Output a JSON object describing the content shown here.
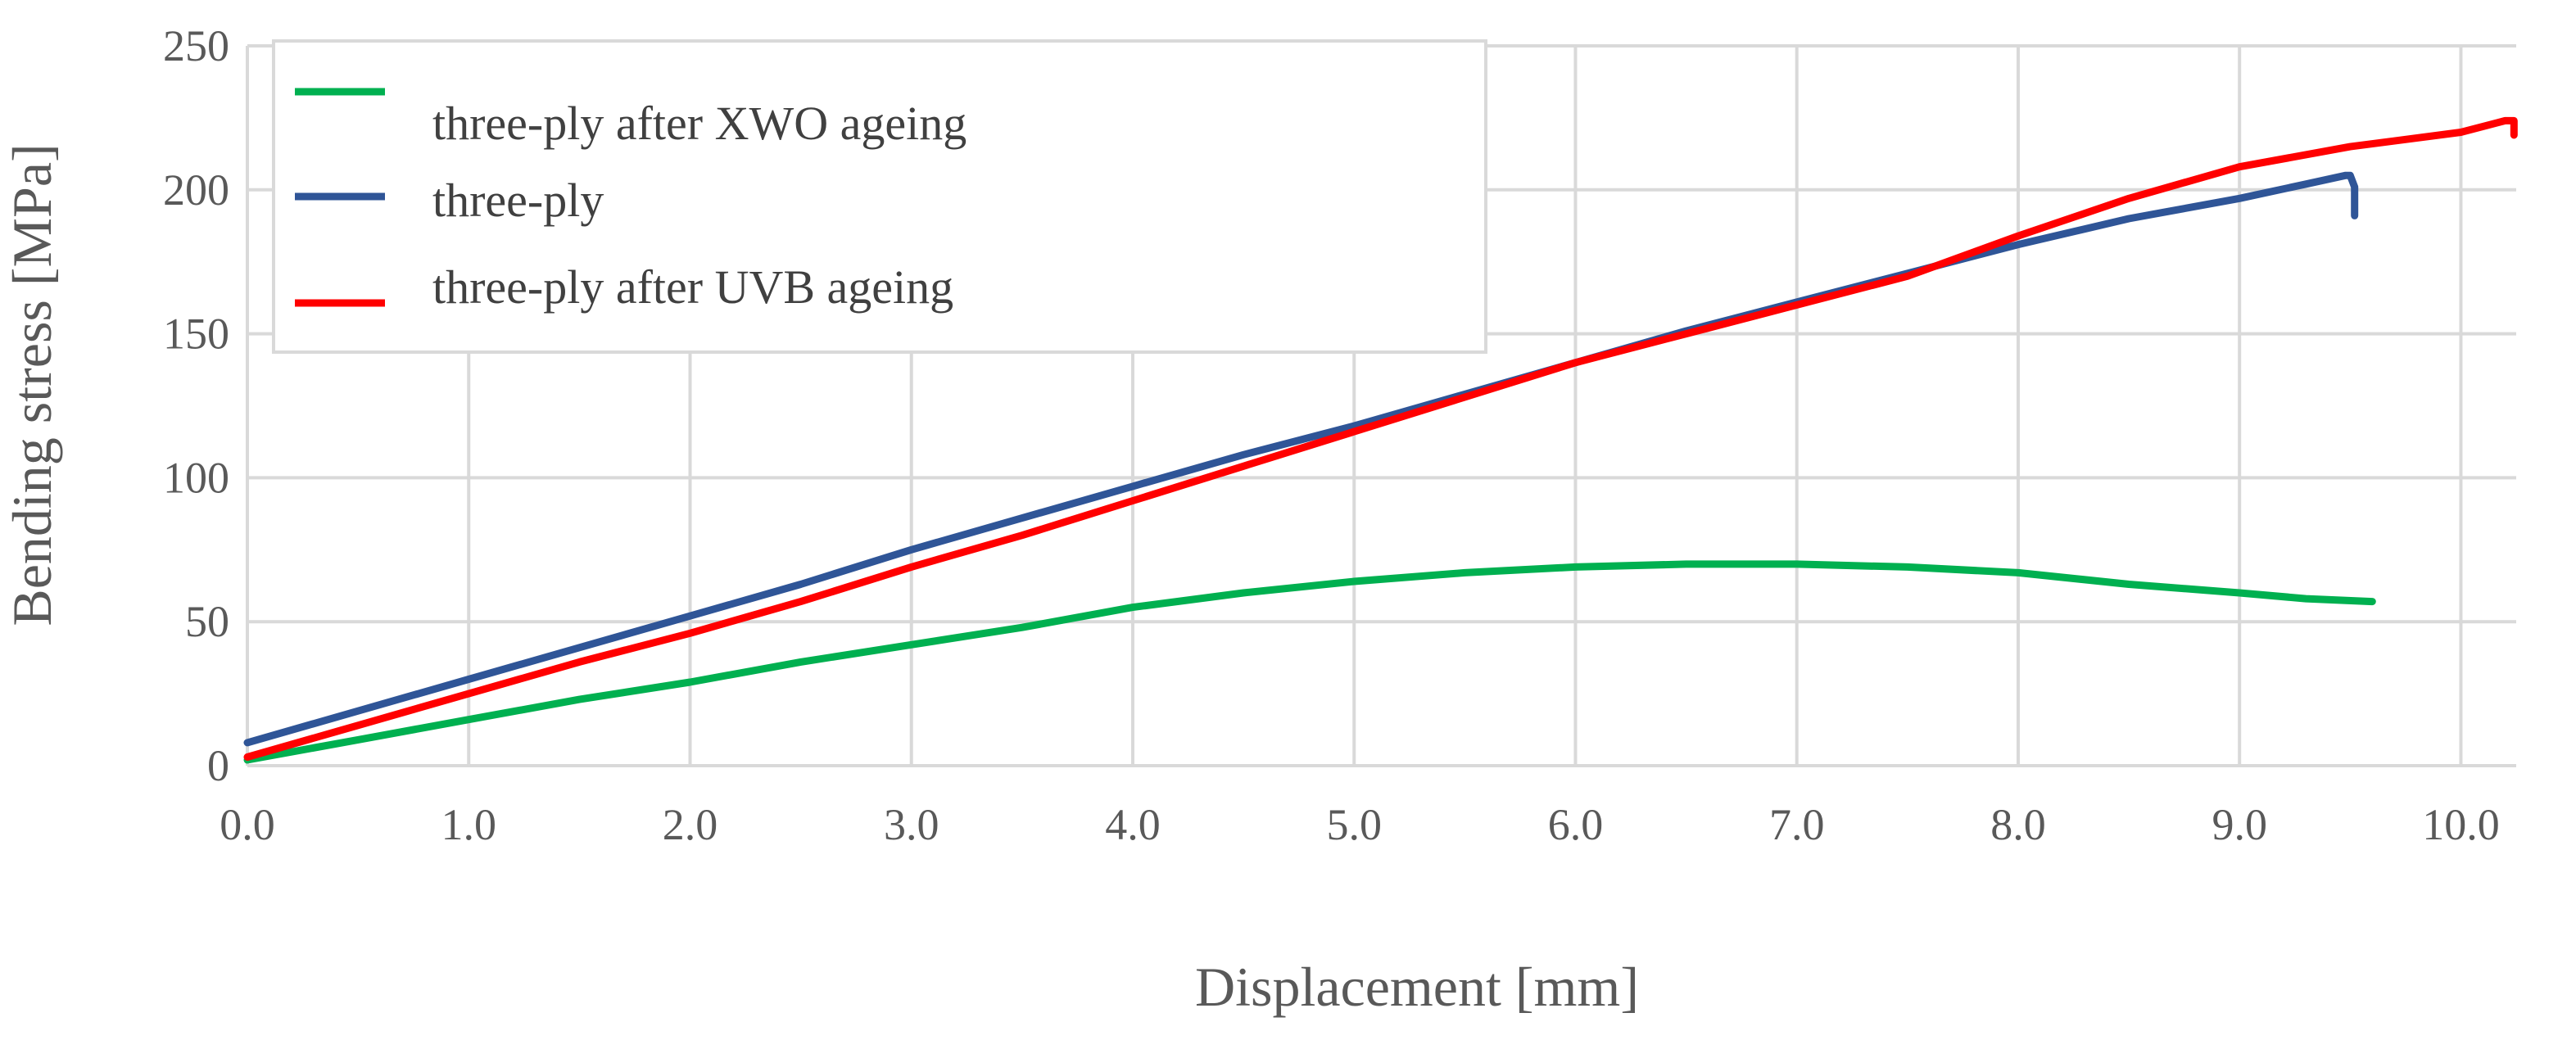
{
  "chart_data": {
    "type": "line",
    "title": "",
    "xlabel": "Displacement [mm]",
    "ylabel": "Bending stress [MPa]",
    "xlim": [
      0.0,
      10.25
    ],
    "ylim": [
      0,
      250
    ],
    "x_ticks": [
      "0.0",
      "1.0",
      "2.0",
      "3.0",
      "4.0",
      "5.0",
      "6.0",
      "7.0",
      "8.0",
      "9.0",
      "10.0"
    ],
    "x_tick_values": [
      0,
      1,
      2,
      3,
      4,
      5,
      6,
      7,
      8,
      9,
      10
    ],
    "y_ticks": [
      "0",
      "50",
      "100",
      "150",
      "200",
      "250"
    ],
    "y_tick_values": [
      0,
      50,
      100,
      150,
      200,
      250
    ],
    "grid": true,
    "legend_position": "top-left",
    "series": [
      {
        "name": "three-ply after XWO ageing",
        "color": "#00b050",
        "points": [
          [
            0.0,
            2
          ],
          [
            0.5,
            9
          ],
          [
            1.0,
            16
          ],
          [
            1.5,
            23
          ],
          [
            2.0,
            29
          ],
          [
            2.5,
            36
          ],
          [
            3.0,
            42
          ],
          [
            3.5,
            48
          ],
          [
            4.0,
            55
          ],
          [
            4.5,
            60
          ],
          [
            5.0,
            64
          ],
          [
            5.5,
            67
          ],
          [
            6.0,
            69
          ],
          [
            6.5,
            70
          ],
          [
            7.0,
            70
          ],
          [
            7.5,
            69
          ],
          [
            8.0,
            67
          ],
          [
            8.5,
            63
          ],
          [
            9.0,
            60
          ],
          [
            9.3,
            58
          ],
          [
            9.6,
            57
          ]
        ]
      },
      {
        "name": "three-ply",
        "color": "#2f5597",
        "points": [
          [
            0.0,
            8
          ],
          [
            0.5,
            19
          ],
          [
            1.0,
            30
          ],
          [
            1.5,
            41
          ],
          [
            2.0,
            52
          ],
          [
            2.5,
            63
          ],
          [
            3.0,
            75
          ],
          [
            3.5,
            86
          ],
          [
            4.0,
            97
          ],
          [
            4.5,
            108
          ],
          [
            5.0,
            118
          ],
          [
            5.5,
            129
          ],
          [
            6.0,
            140
          ],
          [
            6.5,
            151
          ],
          [
            7.0,
            161
          ],
          [
            7.5,
            171
          ],
          [
            8.0,
            181
          ],
          [
            8.5,
            190
          ],
          [
            9.0,
            197
          ],
          [
            9.3,
            202
          ],
          [
            9.48,
            205
          ],
          [
            9.5,
            205
          ],
          [
            9.52,
            201
          ],
          [
            9.52,
            191
          ]
        ]
      },
      {
        "name": "three-ply after UVB ageing",
        "color": "#ff0000",
        "points": [
          [
            0.0,
            3
          ],
          [
            0.5,
            14
          ],
          [
            1.0,
            25
          ],
          [
            1.5,
            36
          ],
          [
            2.0,
            46
          ],
          [
            2.5,
            57
          ],
          [
            3.0,
            69
          ],
          [
            3.5,
            80
          ],
          [
            4.0,
            92
          ],
          [
            4.5,
            104
          ],
          [
            5.0,
            116
          ],
          [
            5.5,
            128
          ],
          [
            6.0,
            140
          ],
          [
            6.5,
            150
          ],
          [
            7.0,
            160
          ],
          [
            7.5,
            170
          ],
          [
            8.0,
            184
          ],
          [
            8.5,
            197
          ],
          [
            9.0,
            208
          ],
          [
            9.5,
            215
          ],
          [
            10.0,
            220
          ],
          [
            10.2,
            224
          ],
          [
            10.24,
            224
          ],
          [
            10.24,
            219
          ]
        ]
      }
    ]
  }
}
